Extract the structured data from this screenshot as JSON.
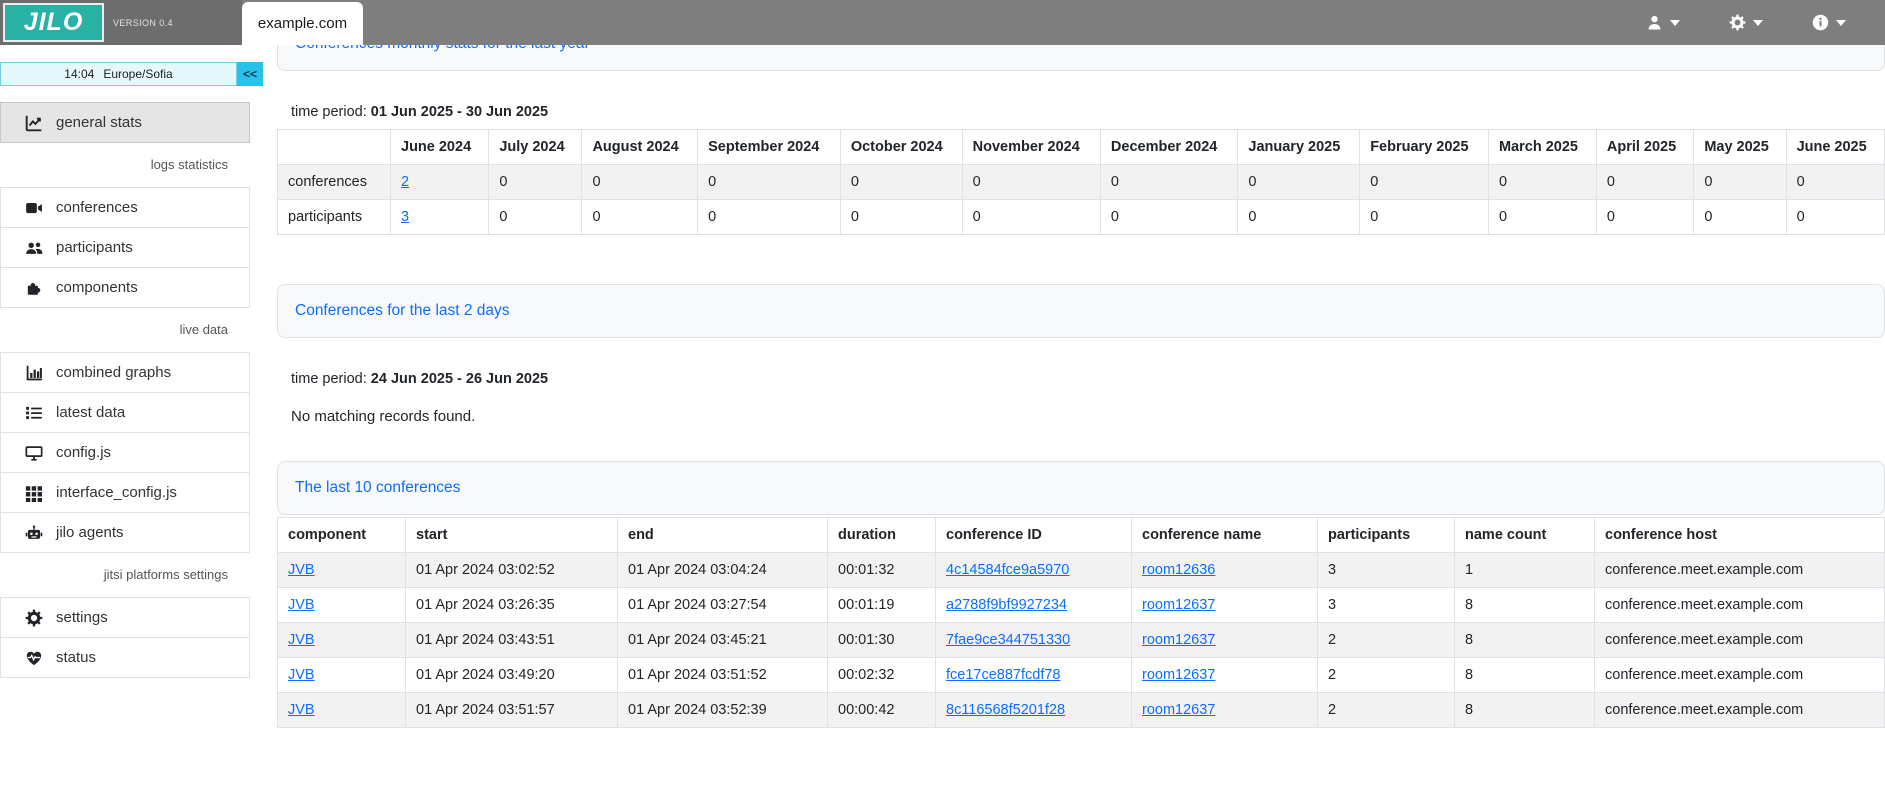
{
  "topbar": {
    "logo_text": "JILO",
    "version": "VERSION 0.4",
    "tab_label": "example.com"
  },
  "sidebar": {
    "clock_time": "14:04",
    "clock_timezone": "Europe/Sofia",
    "collapse_label": "<<",
    "items": [
      {
        "type": "link",
        "icon": "chart-line-icon",
        "label": "general stats",
        "active": true
      },
      {
        "type": "section",
        "label": "logs statistics"
      },
      {
        "type": "link",
        "icon": "video-camera-icon",
        "label": "conferences"
      },
      {
        "type": "link",
        "icon": "users-icon",
        "label": "participants"
      },
      {
        "type": "link",
        "icon": "puzzle-piece-icon",
        "label": "components"
      },
      {
        "type": "section",
        "label": "live data"
      },
      {
        "type": "link",
        "icon": "bar-chart-icon",
        "label": "combined graphs"
      },
      {
        "type": "link",
        "icon": "list-icon",
        "label": "latest data"
      },
      {
        "type": "link",
        "icon": "desktop-icon",
        "label": "config.js"
      },
      {
        "type": "link",
        "icon": "grid-icon",
        "label": "interface_config.js"
      },
      {
        "type": "link",
        "icon": "robot-icon",
        "label": "jilo agents"
      },
      {
        "type": "section",
        "label": "jitsi platforms settings"
      },
      {
        "type": "link",
        "icon": "gear-icon",
        "label": "settings"
      },
      {
        "type": "link",
        "icon": "heartbeat-icon",
        "label": "status"
      }
    ]
  },
  "cards": {
    "monthly": {
      "title": "Conferences monthly stats for the last year",
      "period_label": "time period:",
      "period_value": "01 Jun 2025 - 30 Jun 2025",
      "table": {
        "columns": [
          "",
          "June 2024",
          "July 2024",
          "August 2024",
          "September 2024",
          "October 2024",
          "November 2024",
          "December 2024",
          "January 2025",
          "February 2025",
          "March 2025",
          "April 2025",
          "May 2025",
          "June 2025"
        ],
        "rows": [
          {
            "cells": [
              "conferences",
              {
                "text": "2",
                "link": true
              },
              "0",
              "0",
              "0",
              "0",
              "0",
              "0",
              "0",
              "0",
              "0",
              "0",
              "0",
              "0"
            ]
          },
          {
            "cells": [
              "participants",
              {
                "text": "3",
                "link": true
              },
              "0",
              "0",
              "0",
              "0",
              "0",
              "0",
              "0",
              "0",
              "0",
              "0",
              "0",
              "0"
            ]
          }
        ]
      }
    },
    "last2days": {
      "title": "Conferences for the last 2 days",
      "period_label": "time period:",
      "period_value": "24 Jun 2025 - 26 Jun 2025",
      "empty_message": "No matching records found."
    },
    "last10": {
      "title": "The last 10 conferences",
      "table": {
        "columns": [
          "component",
          "start",
          "end",
          "duration",
          "conference ID",
          "conference name",
          "participants",
          "name count",
          "conference host"
        ],
        "rows": [
          {
            "cells": [
              {
                "text": "JVB",
                "link": true
              },
              "01 Apr 2024 03:02:52",
              "01 Apr 2024 03:04:24",
              "00:01:32",
              {
                "text": "4c14584fce9a5970",
                "link": true
              },
              {
                "text": "room12636",
                "link": true
              },
              "3",
              "1",
              "conference.meet.example.com"
            ]
          },
          {
            "cells": [
              {
                "text": "JVB",
                "link": true
              },
              "01 Apr 2024 03:26:35",
              "01 Apr 2024 03:27:54",
              "00:01:19",
              {
                "text": "a2788f9bf9927234",
                "link": true
              },
              {
                "text": "room12637",
                "link": true
              },
              "3",
              "8",
              "conference.meet.example.com"
            ]
          },
          {
            "cells": [
              {
                "text": "JVB",
                "link": true
              },
              "01 Apr 2024 03:43:51",
              "01 Apr 2024 03:45:21",
              "00:01:30",
              {
                "text": "7fae9ce344751330",
                "link": true
              },
              {
                "text": "room12637",
                "link": true
              },
              "2",
              "8",
              "conference.meet.example.com"
            ]
          },
          {
            "cells": [
              {
                "text": "JVB",
                "link": true
              },
              "01 Apr 2024 03:49:20",
              "01 Apr 2024 03:51:52",
              "00:02:32",
              {
                "text": "fce17ce887fcdf78",
                "link": true
              },
              {
                "text": "room12637",
                "link": true
              },
              "2",
              "8",
              "conference.meet.example.com"
            ]
          },
          {
            "cells": [
              {
                "text": "JVB",
                "link": true
              },
              "01 Apr 2024 03:51:57",
              "01 Apr 2024 03:52:39",
              "00:00:42",
              {
                "text": "8c116568f5201f28",
                "link": true
              },
              {
                "text": "room12637",
                "link": true
              },
              "2",
              "8",
              "conference.meet.example.com"
            ]
          }
        ]
      }
    }
  },
  "colors": {
    "accent_teal": "#28b2a6",
    "link_blue": "#0d6efd",
    "topbar_gray": "#7e7e7e",
    "clock_cyan": "#29c1e9"
  }
}
